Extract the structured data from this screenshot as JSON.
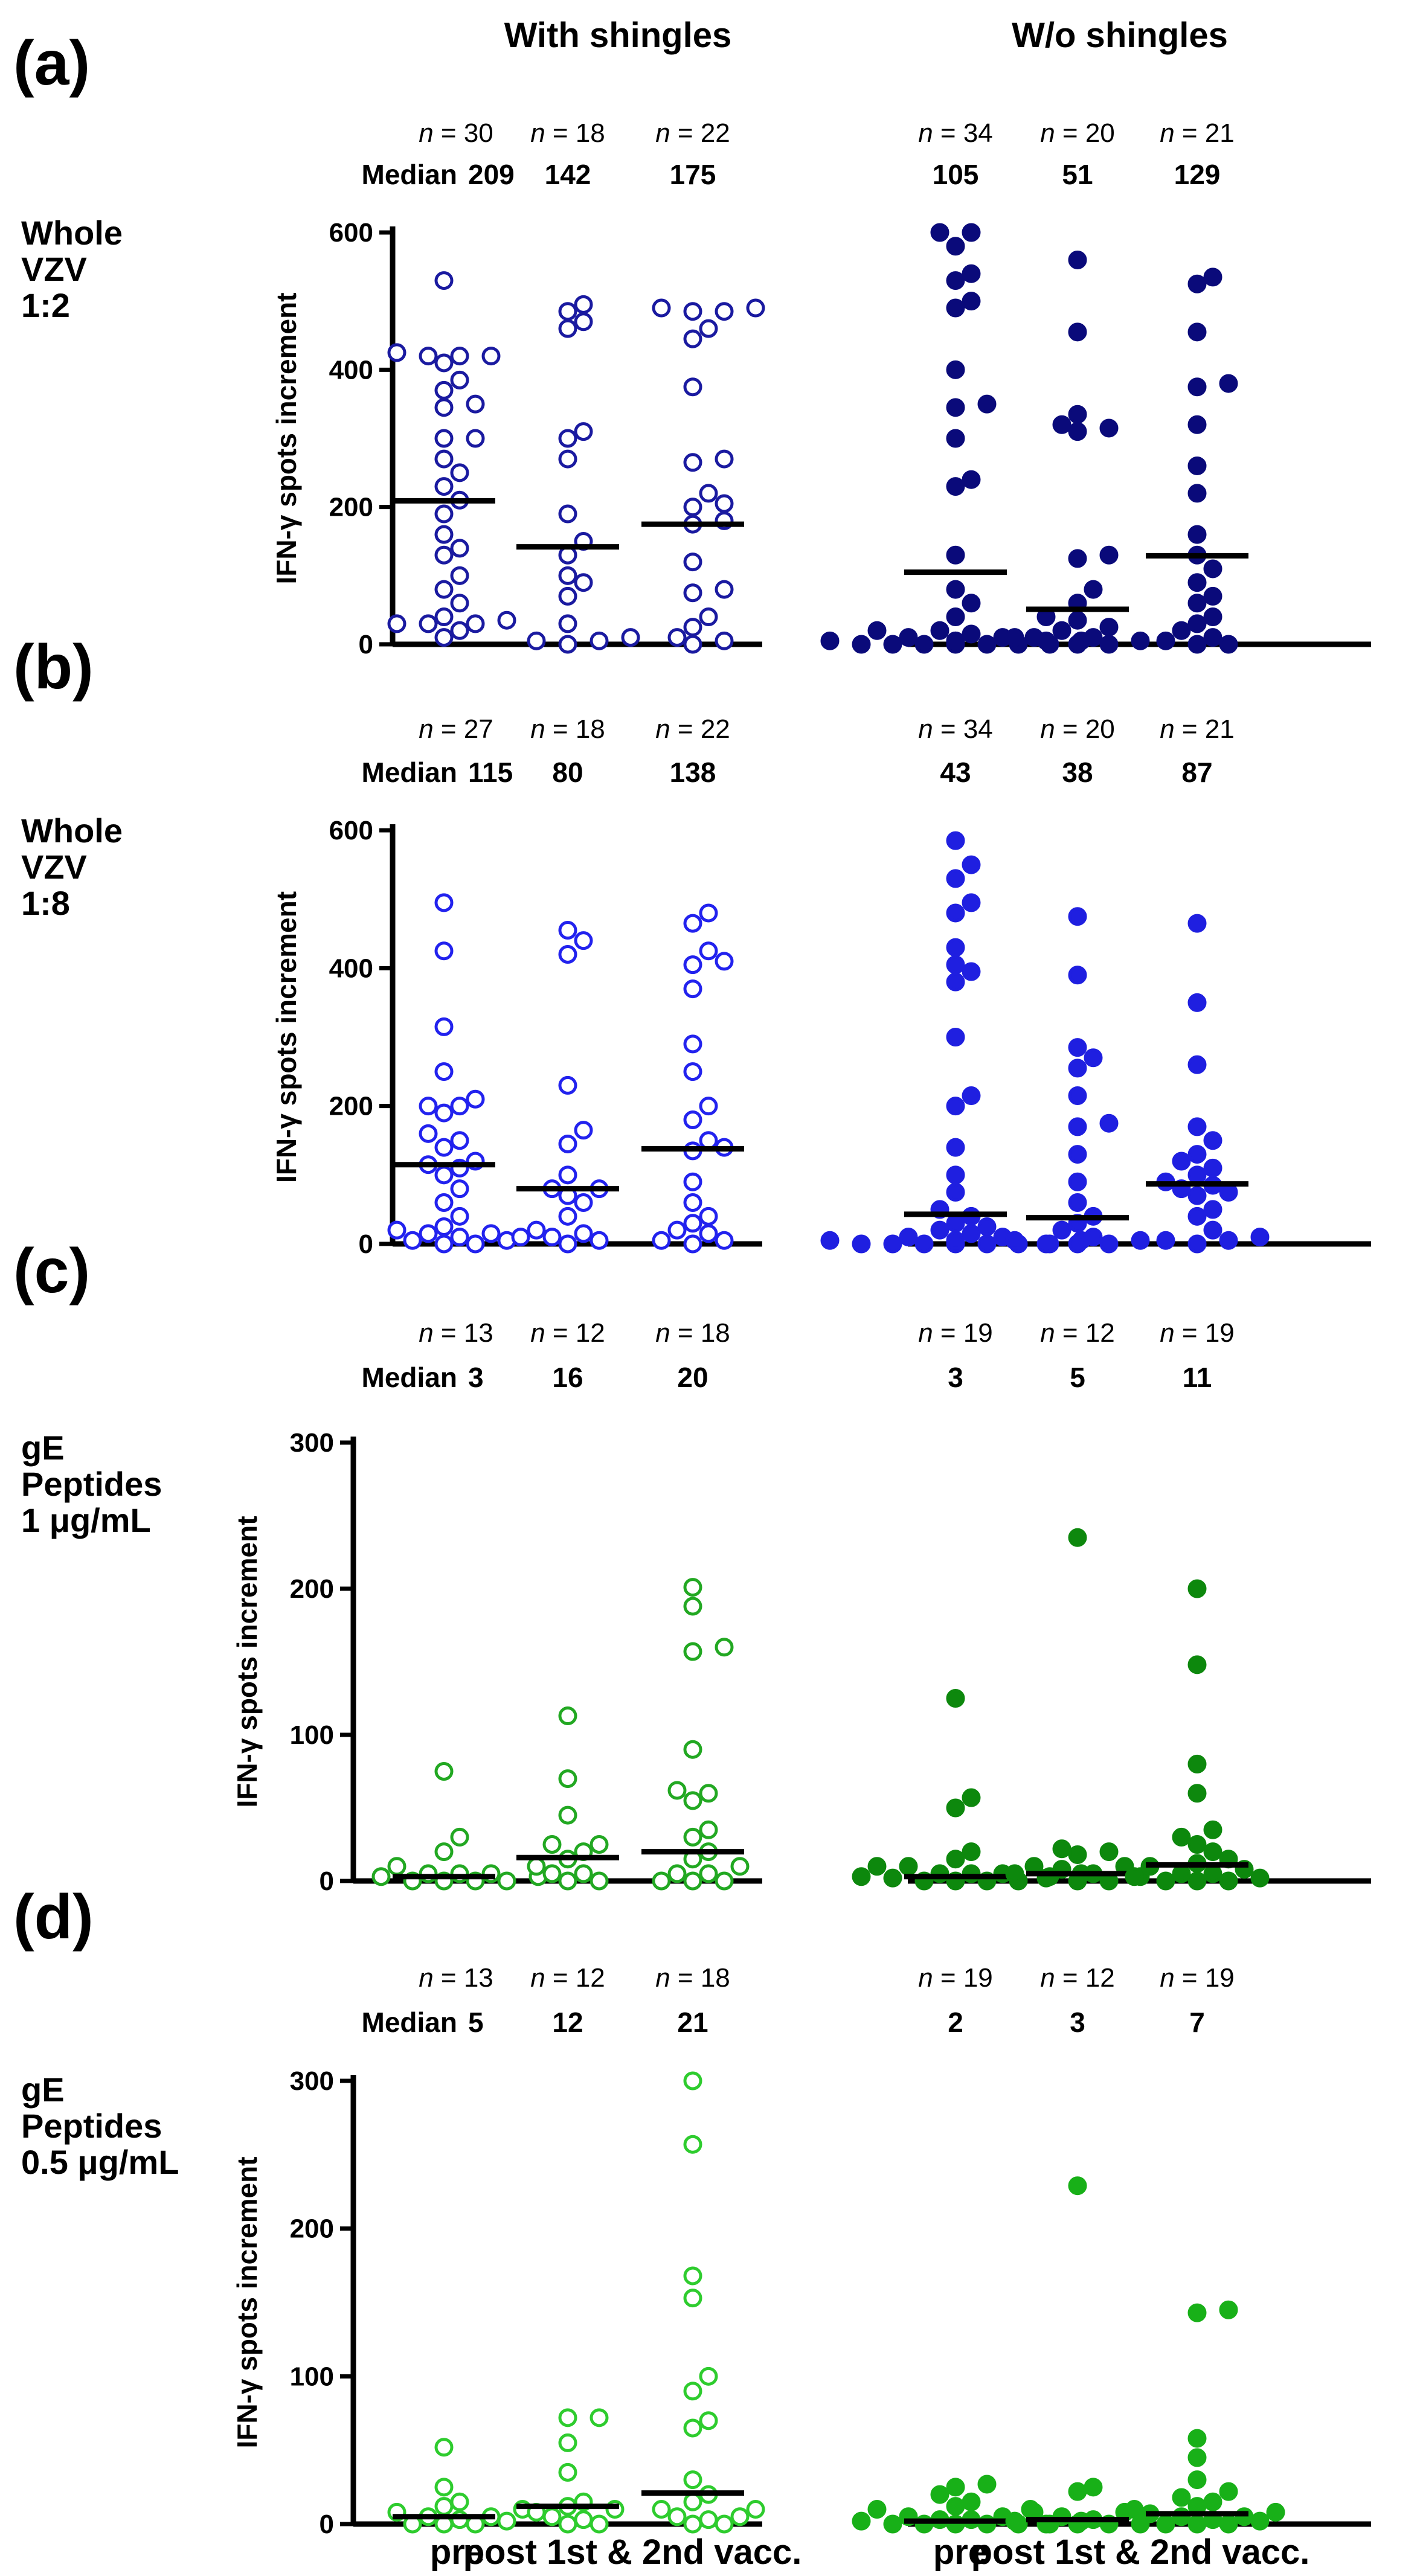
{
  "figure": {
    "group_headers": [
      "With shingles",
      "W/o shingles"
    ],
    "n_prefix": "n",
    "median_label": "Median",
    "x_labels": [
      "pre",
      "post 1st & 2nd vacc."
    ]
  },
  "chart_data": [
    {
      "type": "scatter",
      "panel": "(a)",
      "stimulus": [
        "Whole",
        "VZV",
        "1:2"
      ],
      "ylabel": "IFN-γ spots increment",
      "ylim": [
        0,
        600
      ],
      "yticks": [
        0,
        200,
        400,
        600
      ],
      "colors": {
        "with": "#1a1aa0",
        "without": "#0a0a7a"
      },
      "series": [
        {
          "name": "With shingles",
          "marker": "open",
          "groups": [
            {
              "label": "pre",
              "n": 30,
              "median": 209,
              "values": [
                530,
                425,
                420,
                420,
                420,
                410,
                385,
                370,
                350,
                345,
                300,
                300,
                270,
                250,
                230,
                210,
                190,
                160,
                140,
                130,
                100,
                80,
                60,
                40,
                35,
                30,
                30,
                30,
                20,
                10
              ]
            },
            {
              "label": "post 1st vacc.",
              "n": 18,
              "median": 142,
              "values": [
                495,
                485,
                470,
                460,
                310,
                300,
                270,
                190,
                150,
                130,
                100,
                90,
                70,
                30,
                10,
                5,
                5,
                0
              ]
            },
            {
              "label": "post 2nd vacc.",
              "n": 22,
              "median": 175,
              "values": [
                490,
                490,
                485,
                485,
                460,
                445,
                375,
                270,
                265,
                220,
                205,
                200,
                180,
                175,
                120,
                80,
                75,
                40,
                25,
                10,
                5,
                0
              ]
            }
          ]
        },
        {
          "name": "W/o shingles",
          "marker": "filled",
          "groups": [
            {
              "label": "pre",
              "n": 34,
              "median": 105,
              "values": [
                600,
                600,
                580,
                540,
                530,
                500,
                490,
                400,
                350,
                345,
                300,
                240,
                230,
                130,
                80,
                60,
                40,
                20,
                20,
                15,
                10,
                10,
                10,
                5,
                5,
                5,
                5,
                0,
                0,
                0,
                0,
                0,
                0,
                0
              ]
            },
            {
              "label": "post 1st vacc.",
              "n": 20,
              "median": 51,
              "values": [
                560,
                455,
                335,
                320,
                315,
                310,
                130,
                125,
                80,
                60,
                40,
                35,
                25,
                20,
                10,
                10,
                5,
                5,
                0,
                0
              ]
            },
            {
              "label": "post 2nd vacc.",
              "n": 21,
              "median": 129,
              "values": [
                535,
                525,
                455,
                380,
                375,
                320,
                260,
                220,
                160,
                130,
                110,
                90,
                70,
                60,
                40,
                30,
                20,
                10,
                5,
                0,
                0
              ]
            }
          ]
        }
      ]
    },
    {
      "type": "scatter",
      "panel": "(b)",
      "stimulus": [
        "Whole",
        "VZV",
        "1:8"
      ],
      "ylabel": "IFN-γ spots increment",
      "ylim": [
        0,
        600
      ],
      "yticks": [
        0,
        200,
        400,
        600
      ],
      "colors": {
        "with": "#2222ee",
        "without": "#1f1fe0"
      },
      "series": [
        {
          "name": "With shingles",
          "marker": "open",
          "groups": [
            {
              "label": "pre",
              "n": 27,
              "median": 115,
              "values": [
                495,
                425,
                315,
                250,
                210,
                200,
                200,
                190,
                160,
                150,
                140,
                120,
                115,
                110,
                100,
                80,
                60,
                40,
                25,
                20,
                15,
                15,
                10,
                5,
                5,
                0,
                0
              ]
            },
            {
              "label": "post 1st vacc.",
              "n": 18,
              "median": 80,
              "values": [
                455,
                440,
                420,
                230,
                165,
                145,
                100,
                80,
                80,
                70,
                60,
                40,
                20,
                15,
                10,
                10,
                5,
                0
              ]
            },
            {
              "label": "post 2nd vacc.",
              "n": 22,
              "median": 138,
              "values": [
                480,
                465,
                425,
                410,
                405,
                370,
                290,
                250,
                200,
                180,
                150,
                140,
                135,
                90,
                60,
                40,
                30,
                20,
                15,
                5,
                5,
                0
              ]
            }
          ]
        },
        {
          "name": "W/o shingles",
          "marker": "filled",
          "groups": [
            {
              "label": "pre",
              "n": 34,
              "median": 43,
              "values": [
                585,
                550,
                530,
                495,
                480,
                430,
                405,
                395,
                380,
                300,
                215,
                200,
                140,
                100,
                75,
                50,
                40,
                30,
                25,
                20,
                15,
                10,
                10,
                5,
                5,
                5,
                5,
                0,
                0,
                0,
                0,
                0,
                0,
                0
              ]
            },
            {
              "label": "post 1st vacc.",
              "n": 20,
              "median": 38,
              "values": [
                475,
                390,
                285,
                270,
                255,
                215,
                175,
                170,
                130,
                90,
                60,
                40,
                30,
                20,
                10,
                5,
                5,
                0,
                0,
                0
              ]
            },
            {
              "label": "post 2nd vacc.",
              "n": 21,
              "median": 87,
              "values": [
                465,
                350,
                260,
                170,
                150,
                130,
                120,
                110,
                100,
                90,
                85,
                80,
                75,
                70,
                50,
                40,
                20,
                10,
                5,
                5,
                0
              ]
            }
          ]
        }
      ]
    },
    {
      "type": "scatter",
      "panel": "(c)",
      "stimulus": [
        "gE",
        "Peptides",
        "1 μg/mL"
      ],
      "ylabel": "IFN-γ spots increment",
      "ylim": [
        0,
        300
      ],
      "yticks": [
        0,
        100,
        200,
        300
      ],
      "colors": {
        "with": "#22a822",
        "without": "#0d880d"
      },
      "series": [
        {
          "name": "With shingles",
          "marker": "open",
          "groups": [
            {
              "label": "pre",
              "n": 13,
              "median": 3,
              "values": [
                75,
                30,
                20,
                10,
                5,
                5,
                5,
                3,
                3,
                0,
                0,
                0,
                0
              ]
            },
            {
              "label": "post 1st vacc.",
              "n": 12,
              "median": 16,
              "values": [
                113,
                70,
                45,
                25,
                25,
                20,
                15,
                10,
                5,
                5,
                0,
                0
              ]
            },
            {
              "label": "post 2nd vacc.",
              "n": 18,
              "median": 20,
              "values": [
                201,
                188,
                160,
                157,
                90,
                62,
                60,
                55,
                35,
                30,
                20,
                15,
                10,
                5,
                5,
                0,
                0,
                0
              ]
            }
          ]
        },
        {
          "name": "W/o shingles",
          "marker": "filled",
          "groups": [
            {
              "label": "pre",
              "n": 19,
              "median": 3,
              "values": [
                125,
                57,
                50,
                20,
                15,
                10,
                10,
                10,
                5,
                5,
                5,
                5,
                3,
                3,
                2,
                0,
                0,
                0,
                0
              ]
            },
            {
              "label": "post 1st vacc.",
              "n": 12,
              "median": 5,
              "values": [
                235,
                22,
                20,
                18,
                10,
                8,
                5,
                5,
                3,
                2,
                0,
                0
              ]
            },
            {
              "label": "post 2nd vacc.",
              "n": 19,
              "median": 11,
              "values": [
                200,
                148,
                80,
                60,
                35,
                30,
                25,
                20,
                15,
                12,
                10,
                8,
                5,
                5,
                3,
                2,
                0,
                0,
                0
              ]
            }
          ]
        }
      ]
    },
    {
      "type": "scatter",
      "panel": "(d)",
      "stimulus": [
        "gE",
        "Peptides",
        "0.5 μg/mL"
      ],
      "ylabel": "IFN-γ spots increment",
      "ylim": [
        0,
        300
      ],
      "yticks": [
        0,
        100,
        200,
        300
      ],
      "colors": {
        "with": "#2ecc2e",
        "without": "#18b018"
      },
      "series": [
        {
          "name": "With shingles",
          "marker": "open",
          "groups": [
            {
              "label": "pre",
              "n": 13,
              "median": 5,
              "values": [
                52,
                25,
                15,
                12,
                10,
                8,
                5,
                5,
                3,
                2,
                0,
                0,
                0
              ]
            },
            {
              "label": "post 1st vacc.",
              "n": 12,
              "median": 12,
              "values": [
                72,
                72,
                55,
                35,
                15,
                12,
                10,
                8,
                5,
                3,
                0,
                0
              ]
            },
            {
              "label": "post 2nd vacc.",
              "n": 18,
              "median": 21,
              "values": [
                305,
                257,
                168,
                153,
                100,
                90,
                70,
                65,
                30,
                20,
                15,
                10,
                10,
                5,
                5,
                3,
                0,
                0
              ]
            }
          ]
        },
        {
          "name": "W/o shingles",
          "marker": "filled",
          "groups": [
            {
              "label": "pre",
              "n": 19,
              "median": 2,
              "values": [
                27,
                25,
                20,
                15,
                12,
                10,
                8,
                5,
                5,
                3,
                3,
                2,
                2,
                0,
                0,
                0,
                0,
                0,
                0
              ]
            },
            {
              "label": "post 1st vacc.",
              "n": 12,
              "median": 3,
              "values": [
                229,
                25,
                22,
                10,
                8,
                5,
                3,
                2,
                0,
                0,
                0,
                0
              ]
            },
            {
              "label": "post 2nd vacc.",
              "n": 19,
              "median": 7,
              "values": [
                145,
                143,
                58,
                45,
                30,
                22,
                18,
                15,
                12,
                10,
                8,
                7,
                5,
                5,
                3,
                2,
                0,
                0,
                0
              ]
            }
          ]
        }
      ]
    }
  ]
}
